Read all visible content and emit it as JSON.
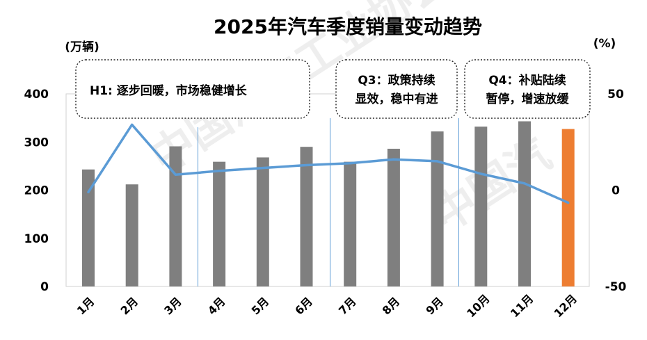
{
  "chart_data": {
    "type": "bar",
    "title": "2025年汽车季度销量变动趋势",
    "left_unit": "(万辆)",
    "right_unit": "(%)",
    "categories": [
      "1月",
      "2月",
      "3月",
      "4月",
      "5月",
      "6月",
      "7月",
      "8月",
      "9月",
      "10月",
      "11月",
      "12月"
    ],
    "series": [
      {
        "kind": "bar",
        "values": [
          243,
          212,
          291,
          259,
          268,
          290,
          259,
          286,
          322,
          332,
          343,
          327
        ],
        "colors": [
          "#7f7f7f",
          "#7f7f7f",
          "#7f7f7f",
          "#7f7f7f",
          "#7f7f7f",
          "#7f7f7f",
          "#7f7f7f",
          "#7f7f7f",
          "#7f7f7f",
          "#7f7f7f",
          "#7f7f7f",
          "#ed7d31"
        ]
      },
      {
        "kind": "line",
        "axis": "right",
        "color": "#5b9bd5",
        "values": [
          -1,
          34,
          8,
          10,
          11.5,
          13,
          14,
          16,
          15,
          8.5,
          3.5,
          -6.5
        ]
      }
    ],
    "ylim_left": [
      0,
      400
    ],
    "yticks_left": [
      "0",
      "100",
      "200",
      "300",
      "400"
    ],
    "ylim_right": [
      -50,
      50
    ],
    "yticks_right": [
      "-50",
      "0",
      "50"
    ],
    "callouts": [
      {
        "lines": [
          "H1: 逐步回暖，市场稳健增长"
        ]
      },
      {
        "lines": [
          "Q3：政策持续",
          "显效，稳中有进"
        ]
      },
      {
        "lines": [
          "Q4：补贴陆续",
          "暂停，增速放缓"
        ]
      }
    ],
    "watermark": "中国汽车工业协会 China Association of Automobile Manufacturers",
    "grid": false
  }
}
